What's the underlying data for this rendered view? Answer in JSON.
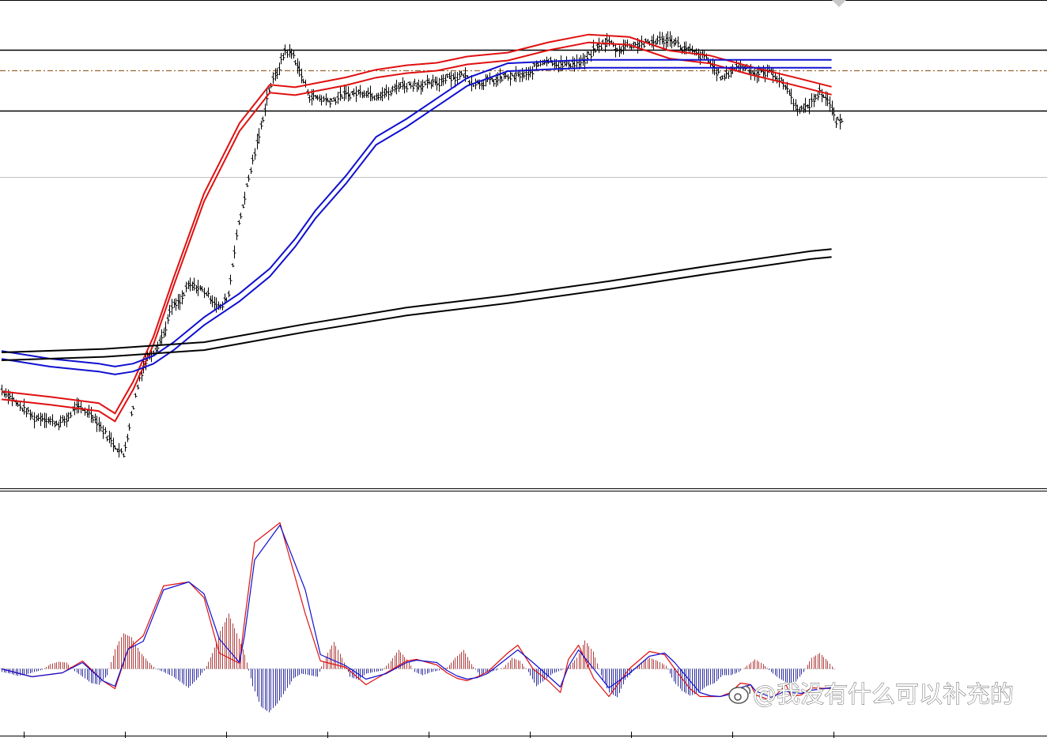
{
  "watermark": {
    "text": "@我没有什么可以补充的",
    "icon": "weibo-icon"
  },
  "chart_data": [
    {
      "type": "line",
      "panel": "price",
      "title": "",
      "xlabel": "",
      "ylabel": "",
      "x_range": [
        0,
        820
      ],
      "ylim": [
        0,
        100
      ],
      "grid": false,
      "legend": "none",
      "price_bars": [
        [
          0,
          20.0
        ],
        [
          8,
          18.8
        ],
        [
          16,
          16.9
        ],
        [
          24,
          15.8
        ],
        [
          32,
          14.2
        ],
        [
          40,
          14.5
        ],
        [
          48,
          13.6
        ],
        [
          56,
          13.2
        ],
        [
          64,
          13.9
        ],
        [
          72,
          16.5
        ],
        [
          80,
          16.0
        ],
        [
          88,
          15.2
        ],
        [
          96,
          13.0
        ],
        [
          104,
          10.6
        ],
        [
          112,
          8.6
        ],
        [
          120,
          6.6
        ],
        [
          128,
          14.8
        ],
        [
          136,
          22.7
        ],
        [
          144,
          26.9
        ],
        [
          152,
          28.6
        ],
        [
          160,
          31.6
        ],
        [
          168,
          37.1
        ],
        [
          176,
          38.0
        ],
        [
          184,
          41.4
        ],
        [
          192,
          41.2
        ],
        [
          200,
          40.3
        ],
        [
          208,
          38.6
        ],
        [
          216,
          36.7
        ],
        [
          224,
          39.7
        ],
        [
          232,
          51.9
        ],
        [
          240,
          59.8
        ],
        [
          248,
          67.0
        ],
        [
          256,
          74.0
        ],
        [
          264,
          81.8
        ],
        [
          272,
          85.2
        ],
        [
          280,
          89.7
        ],
        [
          288,
          88.7
        ],
        [
          296,
          84.5
        ],
        [
          304,
          80.3
        ],
        [
          312,
          80.0
        ],
        [
          320,
          79.5
        ],
        [
          328,
          79.5
        ],
        [
          336,
          80.5
        ],
        [
          344,
          80.7
        ],
        [
          352,
          81.0
        ],
        [
          360,
          81.2
        ],
        [
          368,
          80.4
        ],
        [
          376,
          80.9
        ],
        [
          384,
          81.0
        ],
        [
          392,
          82.6
        ],
        [
          400,
          82.5
        ],
        [
          408,
          82.8
        ],
        [
          416,
          82.5
        ],
        [
          424,
          82.9
        ],
        [
          432,
          83.0
        ],
        [
          440,
          84.6
        ],
        [
          448,
          84.0
        ],
        [
          456,
          84.8
        ],
        [
          464,
          83.2
        ],
        [
          472,
          83.0
        ],
        [
          480,
          83.4
        ],
        [
          488,
          83.5
        ],
        [
          496,
          84.3
        ],
        [
          504,
          84.2
        ],
        [
          512,
          84.6
        ],
        [
          520,
          84.5
        ],
        [
          528,
          86.7
        ],
        [
          536,
          87.7
        ],
        [
          544,
          87.5
        ],
        [
          552,
          86.6
        ],
        [
          560,
          87.0
        ],
        [
          568,
          87.1
        ],
        [
          576,
          87.4
        ],
        [
          584,
          89.6
        ],
        [
          592,
          90.8
        ],
        [
          600,
          91.6
        ],
        [
          608,
          89.6
        ],
        [
          616,
          90.7
        ],
        [
          624,
          90.9
        ],
        [
          632,
          91.0
        ],
        [
          640,
          91.2
        ],
        [
          648,
          91.8
        ],
        [
          656,
          91.8
        ],
        [
          664,
          91.8
        ],
        [
          672,
          90.1
        ],
        [
          680,
          89.6
        ],
        [
          688,
          88.7
        ],
        [
          696,
          88.2
        ],
        [
          704,
          85.9
        ],
        [
          712,
          83.8
        ],
        [
          720,
          85.5
        ],
        [
          728,
          86.5
        ],
        [
          736,
          86.2
        ],
        [
          744,
          84.8
        ],
        [
          752,
          85.1
        ],
        [
          760,
          85.4
        ],
        [
          768,
          83.6
        ],
        [
          776,
          82.0
        ],
        [
          784,
          78.1
        ],
        [
          792,
          77.5
        ],
        [
          800,
          79.0
        ],
        [
          808,
          81.2
        ],
        [
          816,
          79.7
        ],
        [
          824,
          75.1
        ]
      ],
      "horizontal_levels": [
        {
          "value": 89.8,
          "style": "solid",
          "color": "#000000"
        },
        {
          "value": 85.5,
          "style": "dashdot",
          "color": "#996633"
        },
        {
          "value": 77.3,
          "style": "solid",
          "color": "#000000"
        }
      ],
      "series": [
        {
          "color": "#e01010",
          "role": "moving-average band (fast)",
          "x": [
            0,
            48,
            96,
            112,
            130,
            150,
            170,
            200,
            235,
            265,
            290,
            310,
            340,
            370,
            400,
            430,
            460,
            500,
            540,
            580,
            620,
            660,
            700,
            740,
            780,
            820
          ],
          "y": [
            18.9,
            17.8,
            16.5,
            14.4,
            20.9,
            30.1,
            42.2,
            59.5,
            73.9,
            81.8,
            81.3,
            82.1,
            83.3,
            84.9,
            85.8,
            86.3,
            87.6,
            88.4,
            90.5,
            92.1,
            91.6,
            88.8,
            87.8,
            85.5,
            83.5,
            81.4
          ]
        },
        {
          "color": "#1010d0",
          "role": "moving-average band (medium)",
          "x": [
            0,
            48,
            96,
            112,
            130,
            150,
            170,
            200,
            235,
            265,
            290,
            310,
            340,
            370,
            400,
            430,
            460,
            500,
            540,
            580,
            620,
            660,
            700,
            740,
            780,
            820
          ],
          "y": [
            27.2,
            25.6,
            24.6,
            24.0,
            24.6,
            26.2,
            29.0,
            34.1,
            39.0,
            44.1,
            50.2,
            56.0,
            63.1,
            71.1,
            74.8,
            79.0,
            83.2,
            86.2,
            86.6,
            86.9,
            86.9,
            86.9,
            86.9,
            86.9,
            86.9,
            86.9
          ]
        },
        {
          "color": "#000000",
          "role": "moving-average band (slow)",
          "x": [
            0,
            100,
            200,
            300,
            400,
            500,
            600,
            700,
            800,
            820
          ],
          "y": [
            26.9,
            27.6,
            29.0,
            32.7,
            36.1,
            38.6,
            41.5,
            44.7,
            47.7,
            48.1
          ]
        }
      ]
    },
    {
      "type": "bar",
      "panel": "oscillator",
      "title": "",
      "xlabel": "",
      "ylabel": "",
      "x_range": [
        0,
        820
      ],
      "ylim": [
        -60,
        210
      ],
      "grid": false,
      "legend": "none",
      "histogram": [
        [
          0,
          -4
        ],
        [
          8,
          -6
        ],
        [
          16,
          -9
        ],
        [
          24,
          -7
        ],
        [
          32,
          -4
        ],
        [
          40,
          -1
        ],
        [
          48,
          6
        ],
        [
          56,
          9
        ],
        [
          64,
          8
        ],
        [
          72,
          -3
        ],
        [
          80,
          -10
        ],
        [
          88,
          -18
        ],
        [
          96,
          -20
        ],
        [
          104,
          -8
        ],
        [
          112,
          25
        ],
        [
          120,
          45
        ],
        [
          128,
          40
        ],
        [
          136,
          22
        ],
        [
          144,
          10
        ],
        [
          152,
          0
        ],
        [
          160,
          -4
        ],
        [
          168,
          -9
        ],
        [
          176,
          -16
        ],
        [
          184,
          -24
        ],
        [
          192,
          -14
        ],
        [
          200,
          -2
        ],
        [
          208,
          20
        ],
        [
          216,
          48
        ],
        [
          224,
          70
        ],
        [
          232,
          45
        ],
        [
          240,
          18
        ],
        [
          248,
          -22
        ],
        [
          256,
          -48
        ],
        [
          264,
          -55
        ],
        [
          272,
          -44
        ],
        [
          280,
          -28
        ],
        [
          288,
          -12
        ],
        [
          296,
          -6
        ],
        [
          304,
          -8
        ],
        [
          312,
          -10
        ],
        [
          320,
          16
        ],
        [
          328,
          34
        ],
        [
          336,
          14
        ],
        [
          344,
          -10
        ],
        [
          352,
          -14
        ],
        [
          360,
          -6
        ],
        [
          368,
          -4
        ],
        [
          376,
          -2
        ],
        [
          384,
          10
        ],
        [
          392,
          24
        ],
        [
          400,
          12
        ],
        [
          408,
          -4
        ],
        [
          416,
          -8
        ],
        [
          424,
          -4
        ],
        [
          432,
          -2
        ],
        [
          440,
          2
        ],
        [
          448,
          14
        ],
        [
          456,
          24
        ],
        [
          464,
          6
        ],
        [
          472,
          -8
        ],
        [
          480,
          -4
        ],
        [
          488,
          -2
        ],
        [
          496,
          2
        ],
        [
          504,
          14
        ],
        [
          512,
          10
        ],
        [
          520,
          -4
        ],
        [
          528,
          -22
        ],
        [
          536,
          -14
        ],
        [
          544,
          -6
        ],
        [
          552,
          -2
        ],
        [
          560,
          2
        ],
        [
          568,
          14
        ],
        [
          576,
          36
        ],
        [
          584,
          22
        ],
        [
          592,
          -8
        ],
        [
          600,
          -30
        ],
        [
          608,
          -36
        ],
        [
          616,
          -14
        ],
        [
          624,
          -2
        ],
        [
          632,
          8
        ],
        [
          640,
          14
        ],
        [
          648,
          10
        ],
        [
          656,
          4
        ],
        [
          664,
          -16
        ],
        [
          672,
          -28
        ],
        [
          680,
          -34
        ],
        [
          688,
          -30
        ],
        [
          696,
          -22
        ],
        [
          704,
          -18
        ],
        [
          712,
          -8
        ],
        [
          720,
          -8
        ],
        [
          728,
          -4
        ],
        [
          736,
          4
        ],
        [
          744,
          12
        ],
        [
          752,
          6
        ],
        [
          760,
          -4
        ],
        [
          768,
          -12
        ],
        [
          776,
          -18
        ],
        [
          784,
          -16
        ],
        [
          792,
          -4
        ],
        [
          800,
          14
        ],
        [
          808,
          20
        ],
        [
          816,
          10
        ],
        [
          824,
          -4
        ]
      ],
      "series": [
        {
          "color": "#e01010",
          "role": "oscillator fast line",
          "x": [
            0,
            30,
            60,
            80,
            100,
            112,
            125,
            140,
            160,
            185,
            200,
            215,
            235,
            240,
            250,
            275,
            300,
            315,
            340,
            360,
            380,
            400,
            410,
            430,
            440,
            450,
            460,
            470,
            480,
            500,
            510,
            525,
            540,
            552,
            560,
            570,
            585,
            600,
            620,
            640,
            655,
            665,
            680,
            690,
            700,
            710,
            720,
            730,
            740,
            745,
            760,
            775,
            780,
            790,
            800,
            820
          ],
          "y": [
            0,
            -10,
            -5,
            10,
            -15,
            -25,
            25,
            42,
            105,
            110,
            90,
            20,
            7,
            60,
            160,
            185,
            70,
            10,
            2,
            -20,
            -5,
            10,
            12,
            5,
            -5,
            -12,
            -15,
            -10,
            -4,
            20,
            30,
            0,
            -15,
            -30,
            12,
            30,
            -12,
            -35,
            0,
            22,
            18,
            0,
            -25,
            -35,
            -35,
            -35,
            -30,
            -18,
            -20,
            -33,
            -40,
            -20,
            -35,
            -33,
            -24,
            -25
          ]
        },
        {
          "color": "#1010d0",
          "role": "oscillator signal line",
          "x": [
            0,
            30,
            60,
            80,
            100,
            112,
            125,
            140,
            160,
            185,
            200,
            215,
            235,
            240,
            250,
            275,
            300,
            315,
            340,
            360,
            380,
            400,
            410,
            430,
            440,
            450,
            460,
            470,
            480,
            500,
            510,
            525,
            540,
            552,
            560,
            570,
            585,
            600,
            620,
            640,
            655,
            665,
            680,
            690,
            700,
            710,
            720,
            730,
            740,
            745,
            760,
            775,
            780,
            790,
            800,
            820
          ],
          "y": [
            0,
            -10,
            -5,
            8,
            -15,
            -22,
            25,
            35,
            100,
            110,
            95,
            38,
            8,
            42,
            138,
            182,
            100,
            18,
            4,
            -13,
            -6,
            8,
            11,
            8,
            -2,
            -9,
            -13,
            -11,
            -6,
            14,
            24,
            8,
            -9,
            -23,
            3,
            24,
            0,
            -24,
            -6,
            16,
            20,
            8,
            -15,
            -30,
            -34,
            -35,
            -32,
            -24,
            -20,
            -28,
            -36,
            -28,
            -30,
            -31,
            -27,
            -24
          ]
        }
      ]
    }
  ]
}
